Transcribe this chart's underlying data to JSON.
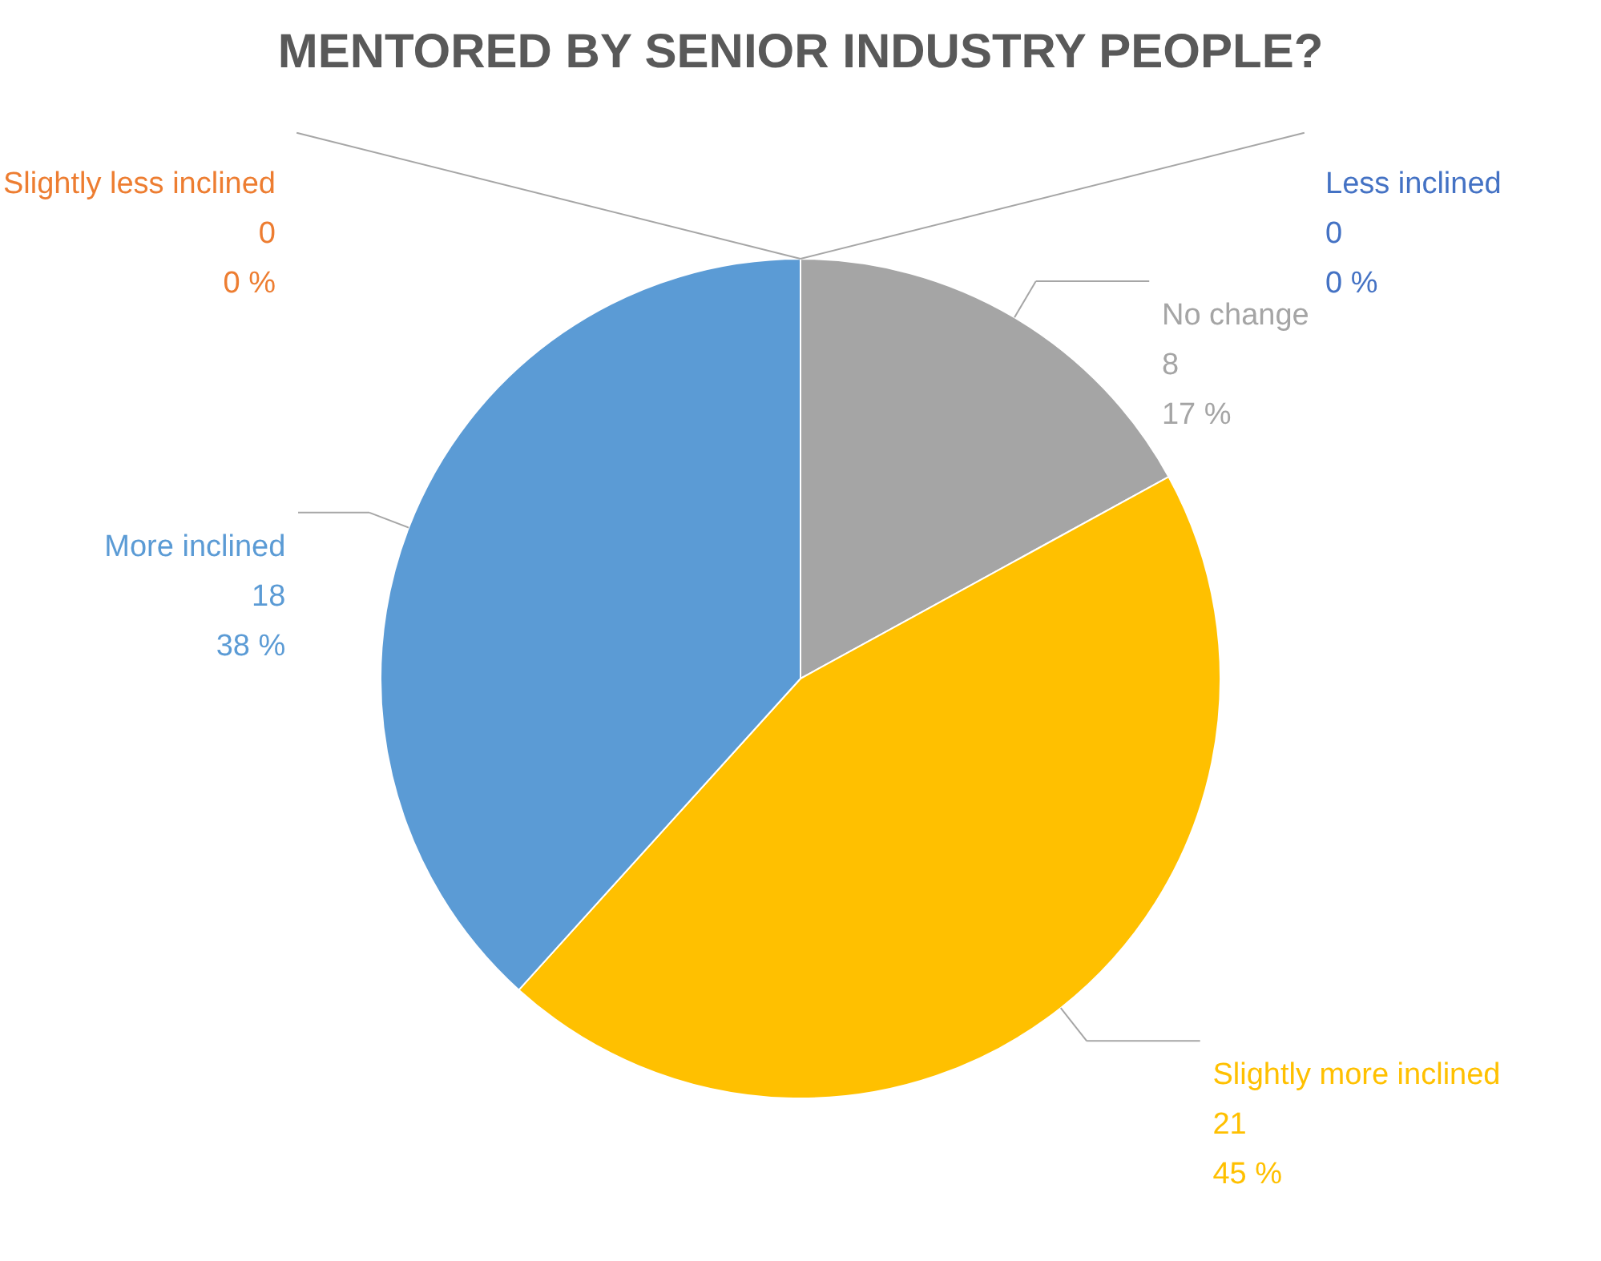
{
  "chart_data": {
    "type": "pie",
    "title": "MENTORED BY SENIOR INDUSTRY PEOPLE?",
    "categories": [
      "Less inclined",
      "No change",
      "Slightly more inclined",
      "More inclined",
      "Slightly less inclined"
    ],
    "values": [
      0,
      8,
      21,
      18,
      0
    ],
    "colors": [
      "#4472c4",
      "#a5a5a5",
      "#ffc000",
      "#5b9bd5",
      "#ed7d31"
    ],
    "value_labels": [
      "0\n0 %",
      "8\n17 %",
      "21\n45 %",
      "18\n38 %",
      "0\n0 %"
    ],
    "legend": false
  }
}
